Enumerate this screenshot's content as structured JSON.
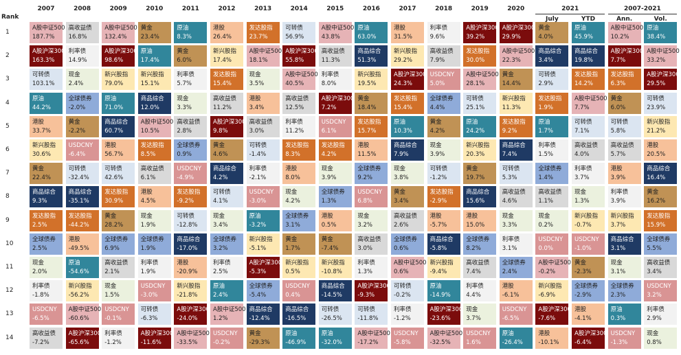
{
  "header": {
    "rank_label": "Rank",
    "columns": [
      "2007",
      "2008",
      "2009",
      "2010",
      "2011",
      "2012",
      "2013",
      "2014",
      "2015",
      "2016",
      "2017",
      "2018",
      "2019",
      "2020",
      "July",
      "YTD",
      "Ann.",
      "Vol."
    ],
    "groups": [
      "2021",
      "2007-2021"
    ]
  },
  "ranks": [
    "1",
    "2",
    "3",
    "4",
    "5",
    "6",
    "7",
    "8",
    "9",
    "10",
    "11",
    "12",
    "13",
    "14"
  ],
  "asset_colors": {
    "A股中证500": [
      "#e6b3b6",
      "#222"
    ],
    "A股沪深300": [
      "#7b0c0c",
      "#fff"
    ],
    "可转债": [
      "#dbe5f1",
      "#222"
    ],
    "原油": [
      "#31869b",
      "#fff"
    ],
    "港股": [
      "#f7c19a",
      "#222"
    ],
    "新兴股指": [
      "#fde8b2",
      "#222"
    ],
    "黄金": [
      "#c09255",
      "#222"
    ],
    "商品综合": [
      "#1f3a64",
      "#fff"
    ],
    "发达股指": [
      "#d2712a",
      "#fff"
    ],
    "全球债券": [
      "#8fabd9",
      "#222"
    ],
    "现金": [
      "#ebf1de",
      "#222"
    ],
    "利率债": [
      "#f2f2f2",
      "#222"
    ],
    "USDCNY": [
      "#d99494",
      "#fff"
    ],
    "高收益债": [
      "#d9d9d9",
      "#222"
    ]
  },
  "table": {
    "columns": [
      [
        [
          "A股中证500",
          "187.7%"
        ],
        [
          "A股沪深300",
          "163.3%"
        ],
        [
          "可转债",
          "103.1%"
        ],
        [
          "原油",
          "44.2%"
        ],
        [
          "港股",
          "33.7%"
        ],
        [
          "新兴股指",
          "30.6%"
        ],
        [
          "黄金",
          "22.4%"
        ],
        [
          "商品综合",
          "9.3%"
        ],
        [
          "发达股指",
          "2.5%"
        ],
        [
          "全球债券",
          "2.5%"
        ],
        [
          "现金",
          "2.0%"
        ],
        [
          "利率债",
          "-1.8%"
        ],
        [
          "USDCNY",
          "-6.5%"
        ],
        [
          "高收益债",
          "-7.2%"
        ]
      ],
      [
        [
          "高收益债",
          "16.8%"
        ],
        [
          "利率债",
          "14.9%"
        ],
        [
          "现金",
          "2.4%"
        ],
        [
          "全球债券",
          "-2.0%"
        ],
        [
          "黄金",
          "-2.2%"
        ],
        [
          "USDCNY",
          "-6.4%"
        ],
        [
          "可转债",
          "-32.4%"
        ],
        [
          "商品综合",
          "-35.1%"
        ],
        [
          "发达股指",
          "-44.2%"
        ],
        [
          "港股",
          "-49.5%"
        ],
        [
          "原油",
          "-54.6%"
        ],
        [
          "新兴股指",
          "-56.2%"
        ],
        [
          "A股中证500",
          "-60.6%"
        ],
        [
          "A股沪深300",
          "-65.6%"
        ]
      ],
      [
        [
          "A股中证500",
          "132.4%"
        ],
        [
          "A股沪深300",
          "98.6%"
        ],
        [
          "新兴股指",
          "79.0%"
        ],
        [
          "原油",
          "71.0%"
        ],
        [
          "商品综合",
          "60.7%"
        ],
        [
          "港股",
          "56.7%"
        ],
        [
          "可转债",
          "42.6%"
        ],
        [
          "发达股指",
          "30.9%"
        ],
        [
          "黄金",
          "28.2%"
        ],
        [
          "全球债券",
          "6.9%"
        ],
        [
          "高收益债",
          "2.1%"
        ],
        [
          "现金",
          "1.5%"
        ],
        [
          "USDCNY",
          "-0.1%"
        ],
        [
          "利率债",
          "-1.2%"
        ]
      ],
      [
        [
          "黄金",
          "23.4%"
        ],
        [
          "原油",
          "17.4%"
        ],
        [
          "新兴股指",
          "15.1%"
        ],
        [
          "商品综合",
          "12.0%"
        ],
        [
          "A股中证500",
          "10.5%"
        ],
        [
          "发达股指",
          "8.5%"
        ],
        [
          "高收益债",
          "6.1%"
        ],
        [
          "港股",
          "4.5%"
        ],
        [
          "现金",
          "1.9%"
        ],
        [
          "全球债券",
          "1.9%"
        ],
        [
          "利率债",
          "1.9%"
        ],
        [
          "USDCNY",
          "-3.0%"
        ],
        [
          "可转债",
          "-6.3%"
        ],
        [
          "A股沪深300",
          "-11.6%"
        ]
      ],
      [
        [
          "原油",
          "8.3%"
        ],
        [
          "黄金",
          "6.0%"
        ],
        [
          "利率债",
          "5.7%"
        ],
        [
          "现金",
          "3.3%"
        ],
        [
          "高收益债",
          "2.8%"
        ],
        [
          "全球债券",
          "0.9%"
        ],
        [
          "USDCNY",
          "-4.9%"
        ],
        [
          "发达股指",
          "-9.2%"
        ],
        [
          "可转债",
          "-12.8%"
        ],
        [
          "商品综合",
          "-17.0%"
        ],
        [
          "港股",
          "-20.9%"
        ],
        [
          "新兴股指",
          "-21.8%"
        ],
        [
          "A股沪深300",
          "-24.0%"
        ],
        [
          "A股中证500",
          "-33.5%"
        ]
      ],
      [
        [
          "港股",
          "26.4%"
        ],
        [
          "新兴股指",
          "17.4%"
        ],
        [
          "发达股指",
          "15.4%"
        ],
        [
          "高收益债",
          "11.2%"
        ],
        [
          "A股沪深300",
          "9.8%"
        ],
        [
          "黄金",
          "4.6%"
        ],
        [
          "商品综合",
          "4.2%"
        ],
        [
          "可转债",
          "4.1%"
        ],
        [
          "现金",
          "3.4%"
        ],
        [
          "全球债券",
          "3.2%"
        ],
        [
          "利率债",
          "2.5%"
        ],
        [
          "原油",
          "2.4%"
        ],
        [
          "A股中证500",
          "1.2%"
        ],
        [
          "USDCNY",
          "-0.2%"
        ]
      ],
      [
        [
          "发达股指",
          "23.7%"
        ],
        [
          "A股中证500",
          "18.1%"
        ],
        [
          "现金",
          "3.5%"
        ],
        [
          "港股",
          "3.4%"
        ],
        [
          "高收益债",
          "3.0%"
        ],
        [
          "可转债",
          "-1.4%"
        ],
        [
          "利率债",
          "-2.1%"
        ],
        [
          "USDCNY",
          "-3.0%"
        ],
        [
          "原油",
          "-3.2%"
        ],
        [
          "新兴股指",
          "-5.1%"
        ],
        [
          "A股沪深300",
          "-5.3%"
        ],
        [
          "全球债券",
          "-5.4%"
        ],
        [
          "商品综合",
          "-12.4%"
        ],
        [
          "黄金",
          "-29.3%"
        ]
      ],
      [
        [
          "可转债",
          "56.9%"
        ],
        [
          "A股沪深300",
          "55.8%"
        ],
        [
          "A股中证500",
          "40.5%"
        ],
        [
          "高收益债",
          "12.5%"
        ],
        [
          "利率债",
          "11.2%"
        ],
        [
          "发达股指",
          "8.3%"
        ],
        [
          "港股",
          "8.0%"
        ],
        [
          "现金",
          "4.2%"
        ],
        [
          "全球债券",
          "3.1%"
        ],
        [
          "黄金",
          "1.7%"
        ],
        [
          "新兴股指",
          "0.5%"
        ],
        [
          "USDCNY",
          "0.4%"
        ],
        [
          "商品综合",
          "-16.5%"
        ],
        [
          "原油",
          "-46.9%"
        ]
      ],
      [
        [
          "A股中证500",
          "43.8%"
        ],
        [
          "高收益债",
          "11.3%"
        ],
        [
          "利率债",
          "8.0%"
        ],
        [
          "A股沪深300",
          "7.2%"
        ],
        [
          "USDCNY",
          "6.1%"
        ],
        [
          "发达股指",
          "4.2%"
        ],
        [
          "现金",
          "3.9%"
        ],
        [
          "全球债券",
          "1.3%"
        ],
        [
          "港股",
          "0.5%"
        ],
        [
          "黄金",
          "-7.4%"
        ],
        [
          "新兴股指",
          "-10.8%"
        ],
        [
          "商品综合",
          "-14.5%"
        ],
        [
          "可转债",
          "-26.5%"
        ],
        [
          "原油",
          "-32.0%"
        ]
      ],
      [
        [
          "原油",
          "63.0%"
        ],
        [
          "商品综合",
          "51.3%"
        ],
        [
          "新兴股指",
          "19.5%"
        ],
        [
          "黄金",
          "18.4%"
        ],
        [
          "发达股指",
          "15.7%"
        ],
        [
          "港股",
          "11.5%"
        ],
        [
          "全球债券",
          "9.2%"
        ],
        [
          "USDCNY",
          "6.8%"
        ],
        [
          "现金",
          "3.2%"
        ],
        [
          "高收益债",
          "3.0%"
        ],
        [
          "利率债",
          "1.3%"
        ],
        [
          "A股沪深300",
          "-9.3%"
        ],
        [
          "可转债",
          "-11.8%"
        ],
        [
          "A股中证500",
          "-17.2%"
        ]
      ],
      [
        [
          "港股",
          "31.5%"
        ],
        [
          "新兴股指",
          "29.2%"
        ],
        [
          "A股沪深300",
          "24.3%"
        ],
        [
          "发达股指",
          "15.4%"
        ],
        [
          "原油",
          "10.3%"
        ],
        [
          "商品综合",
          "7.9%"
        ],
        [
          "现金",
          "3.8%"
        ],
        [
          "黄金",
          "3.4%"
        ],
        [
          "高收益债",
          "2.6%"
        ],
        [
          "全球债券",
          "0.6%"
        ],
        [
          "A股中证500",
          "0.6%"
        ],
        [
          "可转债",
          "-0.2%"
        ],
        [
          "利率债",
          "-1.2%"
        ],
        [
          "USDCNY",
          "-5.8%"
        ]
      ],
      [
        [
          "利率债",
          "9.6%"
        ],
        [
          "高收益债",
          "7.9%"
        ],
        [
          "USDCNY",
          "5.0%"
        ],
        [
          "全球债券",
          "4.4%"
        ],
        [
          "黄金",
          "4.2%"
        ],
        [
          "现金",
          "3.9%"
        ],
        [
          "可转债",
          "-1.2%"
        ],
        [
          "发达股指",
          "-2.9%"
        ],
        [
          "港股",
          "-5.7%"
        ],
        [
          "商品综合",
          "-5.8%"
        ],
        [
          "新兴股指",
          "-9.4%"
        ],
        [
          "原油",
          "-14.9%"
        ],
        [
          "A股沪深300",
          "-23.6%"
        ],
        [
          "A股中证500",
          "-32.5%"
        ]
      ],
      [
        [
          "A股沪深300",
          "39.2%"
        ],
        [
          "发达股指",
          "30.0%"
        ],
        [
          "A股中证500",
          "28.1%"
        ],
        [
          "可转债",
          "25.1%"
        ],
        [
          "原油",
          "24.2%"
        ],
        [
          "新兴股指",
          "20.3%"
        ],
        [
          "黄金",
          "19.7%"
        ],
        [
          "商品综合",
          "15.6%"
        ],
        [
          "港股",
          "15.0%"
        ],
        [
          "全球债券",
          "8.2%"
        ],
        [
          "高收益债",
          "7.4%"
        ],
        [
          "利率债",
          "4.4%"
        ],
        [
          "现金",
          "3.7%"
        ],
        [
          "USDCNY",
          "1.6%"
        ]
      ],
      [
        [
          "A股沪深300",
          "29.9%"
        ],
        [
          "A股中证500",
          "22.3%"
        ],
        [
          "黄金",
          "14.4%"
        ],
        [
          "新兴股指",
          "11.3%"
        ],
        [
          "发达股指",
          "9.2%"
        ],
        [
          "商品综合",
          "7.4%"
        ],
        [
          "可转债",
          "5.3%"
        ],
        [
          "高收益债",
          "4.6%"
        ],
        [
          "现金",
          "3.3%"
        ],
        [
          "利率债",
          "3.1%"
        ],
        [
          "全球债券",
          "2.4%"
        ],
        [
          "港股",
          "-6.1%"
        ],
        [
          "USDCNY",
          "-6.5%"
        ],
        [
          "原油",
          "-26.4%"
        ]
      ],
      [
        [
          "黄金",
          "4.0%"
        ],
        [
          "商品综合",
          "3.4%"
        ],
        [
          "可转债",
          "2.9%"
        ],
        [
          "发达股指",
          "1.9%"
        ],
        [
          "原油",
          "1.7%"
        ],
        [
          "利率债",
          "1.5%"
        ],
        [
          "全球债券",
          "1.4%"
        ],
        [
          "高收益债",
          "1.1%"
        ],
        [
          "现金",
          "0.2%"
        ],
        [
          "USDCNY",
          "0.0%"
        ],
        [
          "A股中证500",
          "-0.2%"
        ],
        [
          "新兴股指",
          "-6.9%"
        ],
        [
          "A股沪深300",
          "-7.6%"
        ],
        [
          "港股",
          "-10.1%"
        ]
      ],
      [
        [
          "原油",
          "45.9%"
        ],
        [
          "商品综合",
          "19.8%"
        ],
        [
          "发达股指",
          "14.2%"
        ],
        [
          "A股中证500",
          "7.7%"
        ],
        [
          "可转债",
          "7.1%"
        ],
        [
          "高收益债",
          "4.0%"
        ],
        [
          "利率债",
          "3.7%"
        ],
        [
          "现金",
          "1.3%"
        ],
        [
          "新兴股指",
          "-0.7%"
        ],
        [
          "USDCNY",
          "-1.0%"
        ],
        [
          "黄金",
          "-2.3%"
        ],
        [
          "全球债券",
          "-2.9%"
        ],
        [
          "港股",
          "-4.1%"
        ],
        [
          "A股沪深300",
          "-6.4%"
        ]
      ],
      [
        [
          "A股中证500",
          "10.2%"
        ],
        [
          "A股沪深300",
          "7.7%"
        ],
        [
          "发达股指",
          "6.3%"
        ],
        [
          "黄金",
          "6.0%"
        ],
        [
          "可转债",
          "5.8%"
        ],
        [
          "高收益债",
          "5.7%"
        ],
        [
          "港股",
          "3.9%"
        ],
        [
          "利率债",
          "3.9%"
        ],
        [
          "新兴股指",
          "3.7%"
        ],
        [
          "商品综合",
          "3.1%"
        ],
        [
          "现金",
          "3.1%"
        ],
        [
          "全球债券",
          "2.3%"
        ],
        [
          "原油",
          "0.3%"
        ],
        [
          "USDCNY",
          "-1.3%"
        ]
      ],
      [
        [
          "原油",
          "38.4%"
        ],
        [
          "A股中证500",
          "33.2%"
        ],
        [
          "A股沪深300",
          "29.5%"
        ],
        [
          "可转债",
          "23.9%"
        ],
        [
          "新兴股指",
          "21.2%"
        ],
        [
          "港股",
          "20.5%"
        ],
        [
          "商品综合",
          "16.4%"
        ],
        [
          "黄金",
          "16.2%"
        ],
        [
          "发达股指",
          "15.9%"
        ],
        [
          "全球债券",
          "5.5%"
        ],
        [
          "高收益债",
          "3.4%"
        ],
        [
          "USDCNY",
          "3.2%"
        ],
        [
          "利率债",
          "2.9%"
        ],
        [
          "现金",
          "0.8%"
        ]
      ]
    ]
  }
}
